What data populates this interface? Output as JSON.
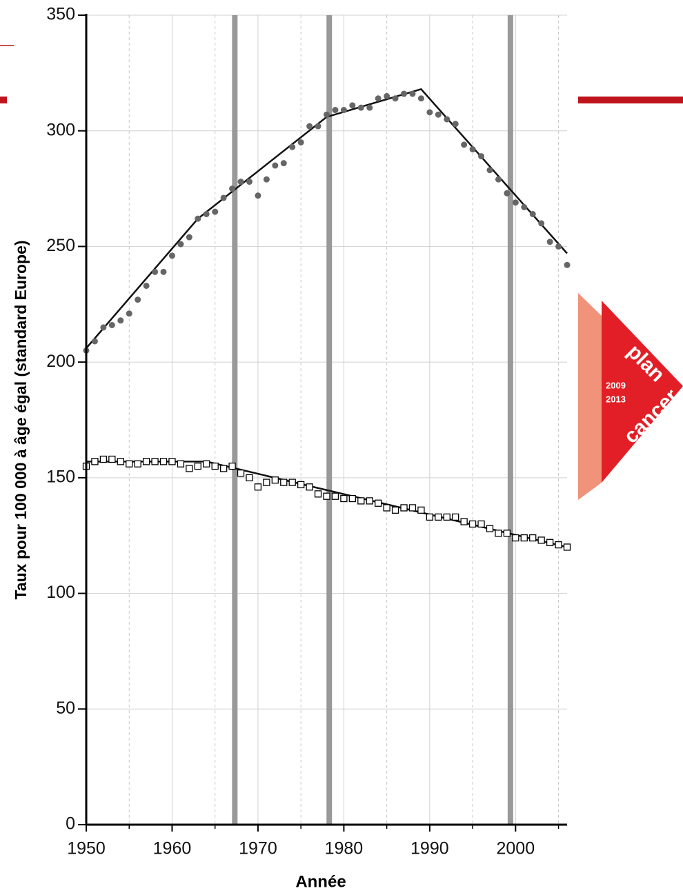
{
  "chart_data": {
    "type": "scatter",
    "xlabel": "Année",
    "ylabel": "Taux pour 100 000 à âge égal (standard Europe)",
    "xlim": [
      1950,
      2006
    ],
    "ylim": [
      0,
      350
    ],
    "xticks": [
      1950,
      1960,
      1970,
      1980,
      1990,
      2000
    ],
    "xminorticks": [
      1955,
      1965,
      1975,
      1985,
      1995,
      2005
    ],
    "yticks": [
      0,
      50,
      100,
      150,
      200,
      250,
      300,
      350
    ],
    "grid": true,
    "vlines": [
      1967.3,
      1978.3,
      1999.4
    ],
    "vline_color": "#999999",
    "x": [
      1950,
      1951,
      1952,
      1953,
      1954,
      1955,
      1956,
      1957,
      1958,
      1959,
      1960,
      1961,
      1962,
      1963,
      1964,
      1965,
      1966,
      1967,
      1968,
      1969,
      1970,
      1971,
      1972,
      1973,
      1974,
      1975,
      1976,
      1977,
      1978,
      1979,
      1980,
      1981,
      1982,
      1983,
      1984,
      1985,
      1986,
      1987,
      1988,
      1989,
      1990,
      1991,
      1992,
      1993,
      1994,
      1995,
      1996,
      1997,
      1998,
      1999,
      2000,
      2001,
      2002,
      2003,
      2004,
      2005,
      2006
    ],
    "series": [
      {
        "marker": "circle",
        "color": "#666666",
        "values": [
          205,
          209,
          215,
          216,
          218,
          221,
          227,
          233,
          239,
          239,
          246,
          251,
          254,
          262,
          264,
          265,
          271,
          275,
          278,
          278,
          272,
          279,
          285,
          286,
          293,
          295,
          302,
          302,
          307,
          309,
          309,
          311,
          310,
          310,
          314,
          315,
          314,
          316,
          316,
          314,
          308,
          307,
          305,
          303,
          294,
          292,
          289,
          283,
          279,
          273,
          269,
          267,
          264,
          260,
          252,
          250,
          242
        ]
      },
      {
        "marker": "square",
        "color": "#000000",
        "values": [
          155,
          157,
          158,
          158,
          157,
          156,
          156,
          157,
          157,
          157,
          157,
          156,
          154,
          155,
          156,
          155,
          154,
          155,
          152,
          150,
          146,
          148,
          149,
          148,
          148,
          147,
          146,
          143,
          142,
          142,
          141,
          141,
          140,
          140,
          139,
          137,
          136,
          137,
          137,
          136,
          133,
          133,
          133,
          133,
          131,
          130,
          130,
          128,
          126,
          126,
          124,
          124,
          124,
          123,
          122,
          121,
          120
        ]
      }
    ],
    "fits": [
      {
        "x": [
          1950,
          1963,
          1978,
          1989,
          2006
        ],
        "values": [
          206,
          262,
          306,
          318,
          247
        ]
      },
      {
        "x": [
          1950,
          1964,
          2006
        ],
        "values": [
          157,
          157,
          120
        ]
      }
    ]
  },
  "logo": {
    "word1": "plan",
    "word2": "cancer",
    "year1": "2009",
    "year2": "2013"
  }
}
